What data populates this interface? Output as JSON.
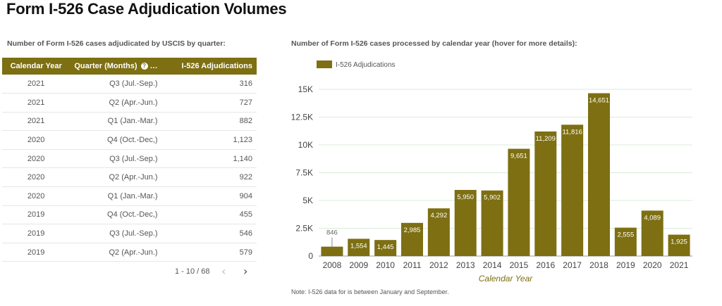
{
  "page": {
    "title": "Form I-526 Case Adjudication Volumes"
  },
  "table_section": {
    "caption": "Number of Form I-526 cases adjudicated by USCIS by quarter:",
    "columns": [
      "Calendar Year",
      "Quarter (Months)",
      "I-526 Adjudications"
    ],
    "help_icon_glyph": "?",
    "sort_indicator": "…",
    "rows": [
      {
        "year": "2021",
        "quarter": "Q3 (Jul.-Sep.)",
        "count": "316"
      },
      {
        "year": "2021",
        "quarter": "Q2 (Apr.-Jun.)",
        "count": "727"
      },
      {
        "year": "2021",
        "quarter": "Q1 (Jan.-Mar.)",
        "count": "882"
      },
      {
        "year": "2020",
        "quarter": "Q4 (Oct.-Dec,)",
        "count": "1,123"
      },
      {
        "year": "2020",
        "quarter": "Q3 (Jul.-Sep.)",
        "count": "1,140"
      },
      {
        "year": "2020",
        "quarter": "Q2 (Apr.-Jun.)",
        "count": "922"
      },
      {
        "year": "2020",
        "quarter": "Q1 (Jan.-Mar.)",
        "count": "904"
      },
      {
        "year": "2019",
        "quarter": "Q4 (Oct.-Dec,)",
        "count": "455"
      },
      {
        "year": "2019",
        "quarter": "Q3 (Jul.-Sep.)",
        "count": "546"
      },
      {
        "year": "2019",
        "quarter": "Q2 (Apr.-Jun.)",
        "count": "579"
      }
    ],
    "pagination": {
      "text": "1 - 10 / 68",
      "prev_glyph": "‹",
      "next_glyph": "›"
    }
  },
  "chart_section": {
    "caption": "Number of Form I-526 cases processed by calendar year (hover for more details):",
    "note": "Note: I-526 data for is between January and September."
  },
  "colors": {
    "bar": "#7d6f12",
    "header": "#7d6f12",
    "grid": "#d9ecd9"
  },
  "chart_data": {
    "type": "bar",
    "title": "Number of Form I-526 cases processed by calendar year (hover for more details):",
    "xlabel": "Calendar Year",
    "ylabel": "",
    "legend": {
      "label": "I-526 Adjudications",
      "position": "top-left"
    },
    "categories": [
      "2008",
      "2009",
      "2010",
      "2011",
      "2012",
      "2013",
      "2014",
      "2015",
      "2016",
      "2017",
      "2018",
      "2019",
      "2020",
      "2021"
    ],
    "values": [
      846,
      1554,
      1445,
      2985,
      4292,
      5950,
      5902,
      9651,
      11209,
      11816,
      14651,
      2555,
      4089,
      1925
    ],
    "value_labels": [
      "846",
      "1,554",
      "1,445",
      "2,985",
      "4,292",
      "5,950",
      "5,902",
      "9,651",
      "11,209",
      "11,816",
      "14,651",
      "2,555",
      "4,089",
      "1,925"
    ],
    "ylim": [
      0,
      15000
    ],
    "yticks": [
      0,
      2500,
      5000,
      7500,
      10000,
      12500,
      15000
    ],
    "ytick_labels": [
      "0",
      "2.5K",
      "5K",
      "7.5K",
      "10K",
      "12.5K",
      "15K"
    ],
    "grid": true
  }
}
